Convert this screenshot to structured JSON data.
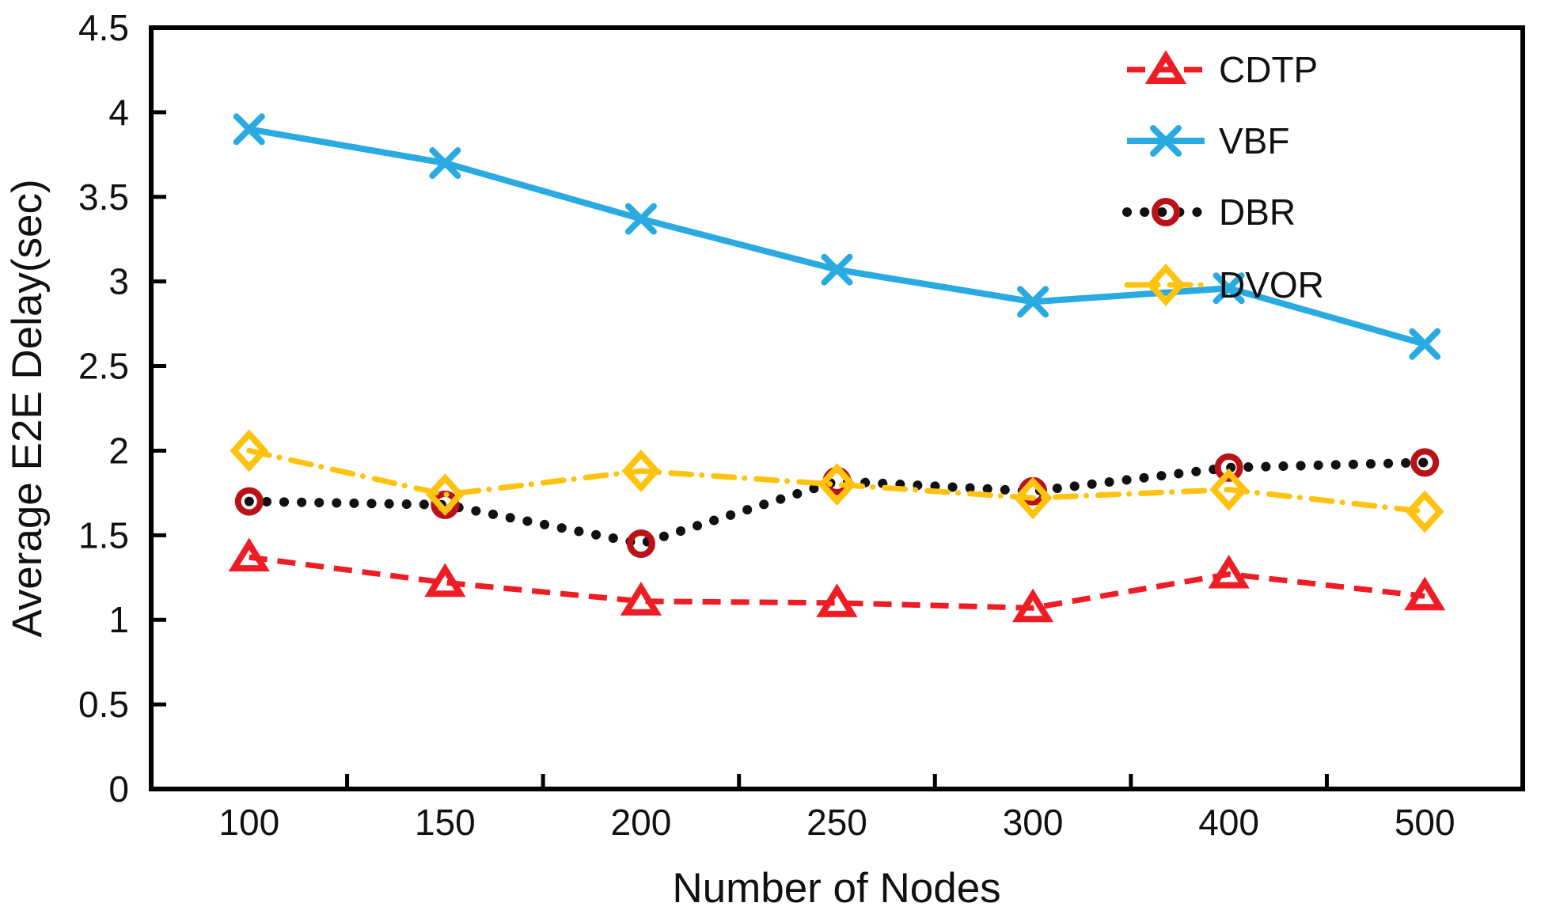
{
  "chart_data": {
    "type": "line",
    "title": "",
    "xlabel": "Number of Nodes",
    "ylabel": "Average E2E Delay(sec)",
    "categories": [
      "100",
      "150",
      "200",
      "250",
      "300",
      "400",
      "500"
    ],
    "yticks": [
      "0",
      "0.5",
      "1",
      "1.5",
      "2",
      "2.5",
      "3",
      "3.5",
      "4",
      "4.5"
    ],
    "ylim": [
      0,
      4.5
    ],
    "grid": false,
    "legend_position": "inside-top-right",
    "series": [
      {
        "name": "CDTP",
        "line": "dashed",
        "marker": "triangle-open",
        "color": "#EE1C25",
        "marker_color": "#EE1C25",
        "values": [
          1.37,
          1.22,
          1.11,
          1.1,
          1.07,
          1.27,
          1.14
        ]
      },
      {
        "name": "VBF",
        "line": "solid",
        "marker": "x",
        "color": "#29ABE2",
        "marker_color": "#29ABE2",
        "values": [
          3.9,
          3.7,
          3.37,
          3.07,
          2.88,
          2.96,
          2.63
        ]
      },
      {
        "name": "DBR",
        "line": "dotted",
        "marker": "circle-open",
        "color": "#111111",
        "marker_color": "#BB1118",
        "values": [
          1.7,
          1.68,
          1.45,
          1.82,
          1.76,
          1.9,
          1.93
        ]
      },
      {
        "name": "DVOR",
        "line": "dash-dot",
        "marker": "diamond-open",
        "color": "#FFC20E",
        "marker_color": "#FFC20E",
        "values": [
          2.0,
          1.74,
          1.88,
          1.8,
          1.72,
          1.77,
          1.64
        ]
      }
    ],
    "frame_color": "#000000",
    "text_color": "#111111"
  }
}
